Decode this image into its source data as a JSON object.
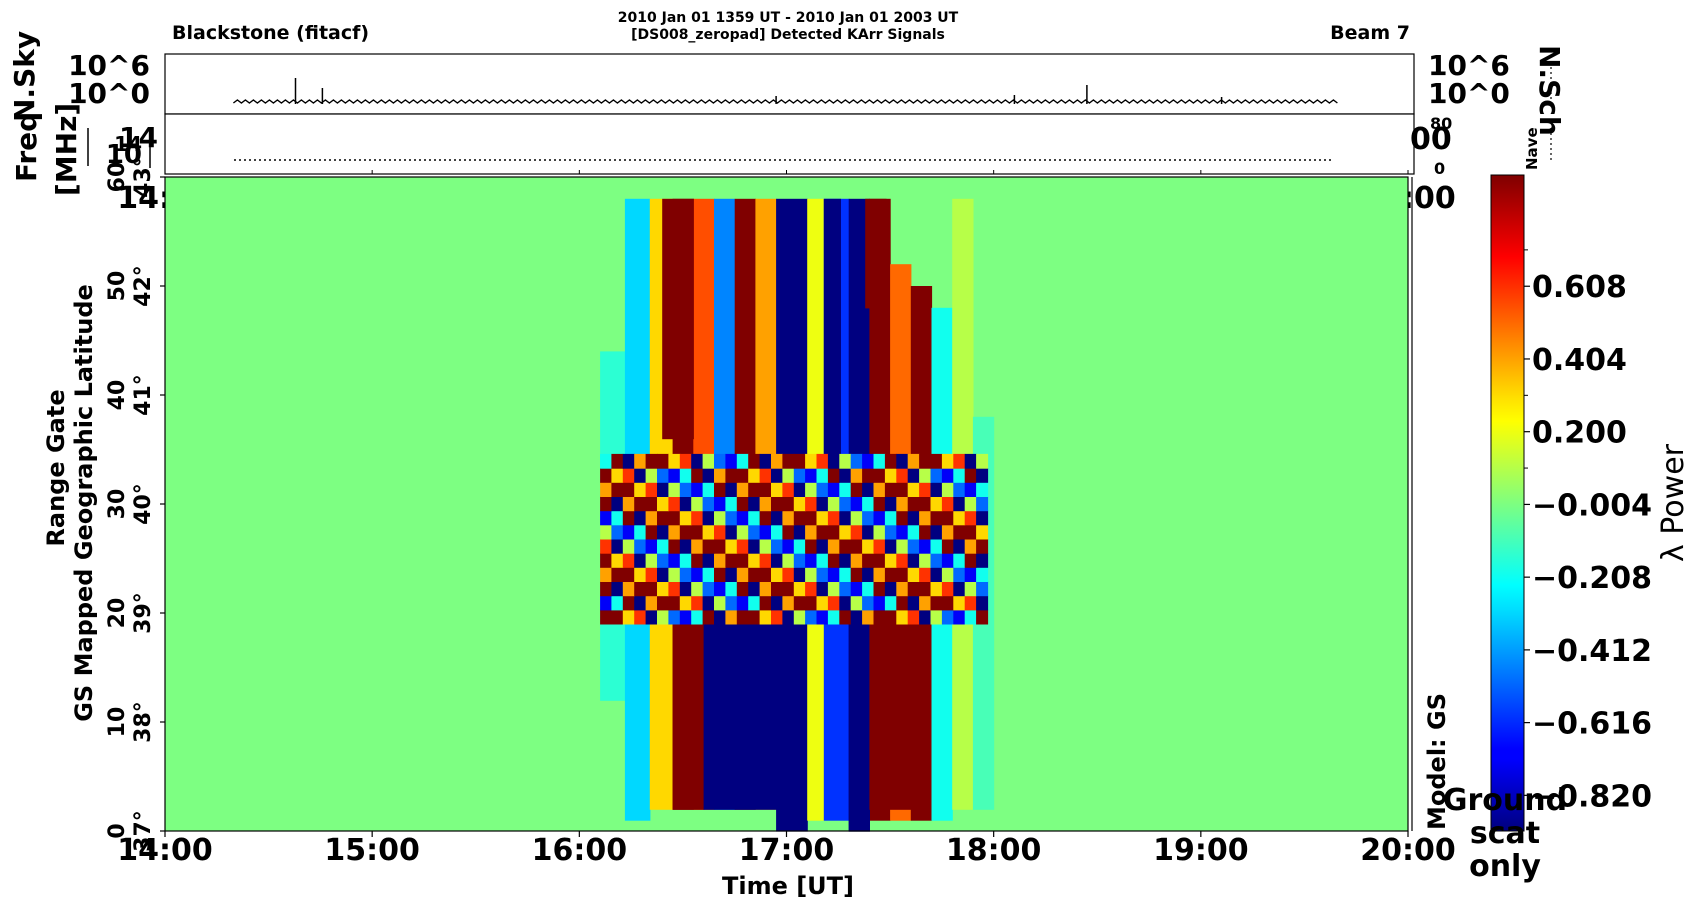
{
  "header": {
    "left": "Blackstone  (fitacf)",
    "center_line1": "2010 Jan 01 1359 UT - 2010 Jan 01 2003 UT",
    "center_line2": "[DS008_zeropad] Detected KArr Signals",
    "right": "Beam 7"
  },
  "top_panel": {
    "left_ticks": [
      "10^6",
      "10^0"
    ],
    "right_ticks": [
      "10^6",
      "10^0"
    ],
    "left_label": "N.Sky",
    "right_label": "N.Sch"
  },
  "freq_panel": {
    "left_ticks": [
      "14",
      "10"
    ],
    "left_label_line1": "Freq",
    "left_label_line2": "[MHz]",
    "right_tick_partial": "00",
    "nave_ticks": [
      "80",
      "0"
    ],
    "nave_label": "Nave"
  },
  "main": {
    "ylabel_line1": "Range Gate",
    "ylabel_line2": "GS Mapped Geographic Latitude",
    "xlabel": "Time [UT]",
    "model_label": "Model: GS",
    "ground_scat": [
      "Ground",
      "scat",
      "only"
    ]
  },
  "colorbar": {
    "ticks": [
      "0.608",
      "0.404",
      "0.200",
      "−0.004",
      "−0.208",
      "−0.412",
      "−0.616",
      "−0.820"
    ],
    "label": "λ Power"
  },
  "chart_data": {
    "type": "heatmap",
    "x_ticks": [
      "14:00",
      "15:00",
      "16:00",
      "17:00",
      "18:00",
      "19:00",
      "20:00"
    ],
    "y_range_gate_ticks": [
      "0",
      "10",
      "20",
      "30",
      "40",
      "50",
      "60"
    ],
    "y_latitude_ticks": [
      "37°",
      "38°",
      "39°",
      "40°",
      "41°",
      "42°",
      "43°"
    ],
    "xlim_hours": [
      14.0,
      20.0
    ],
    "ylim_gates": [
      0,
      60
    ],
    "zlim": [
      -0.92,
      0.92
    ],
    "colormap": "jet",
    "background_value": -0.004,
    "columns": [
      {
        "t0": 16.1,
        "t1": 16.22,
        "g0": 12,
        "g1": 44,
        "v": -0.15
      },
      {
        "t0": 16.22,
        "t1": 16.34,
        "g0": 1,
        "g1": 58,
        "v": -0.3
      },
      {
        "t0": 16.34,
        "t1": 16.45,
        "g0": 2,
        "g1": 58,
        "v": 0.3
      },
      {
        "t0": 16.45,
        "t1": 16.55,
        "g0": 2,
        "g1": 58,
        "v": 0.92
      },
      {
        "t0": 16.55,
        "t1": 16.65,
        "g0": 2,
        "g1": 58,
        "v": 0.55
      },
      {
        "t0": 16.65,
        "t1": 16.75,
        "g0": 2,
        "g1": 58,
        "v": -0.45
      },
      {
        "t0": 16.75,
        "t1": 16.85,
        "g0": 2,
        "g1": 58,
        "v": 0.92
      },
      {
        "t0": 16.85,
        "t1": 16.95,
        "g0": 2,
        "g1": 58,
        "v": 0.4
      },
      {
        "t0": 16.95,
        "t1": 17.1,
        "g0": 0,
        "g1": 58,
        "v": -0.92
      },
      {
        "t0": 17.1,
        "t1": 17.18,
        "g0": 1,
        "g1": 58,
        "v": 0.2
      },
      {
        "t0": 17.18,
        "t1": 17.3,
        "g0": 1,
        "g1": 58,
        "v": -0.6
      },
      {
        "t0": 17.3,
        "t1": 17.4,
        "g0": 0,
        "g1": 58,
        "v": -0.92
      },
      {
        "t0": 17.4,
        "t1": 17.5,
        "g0": 1,
        "g1": 58,
        "v": 0.92
      },
      {
        "t0": 17.5,
        "t1": 17.6,
        "g0": 1,
        "g1": 52,
        "v": 0.5
      },
      {
        "t0": 17.6,
        "t1": 17.7,
        "g0": 1,
        "g1": 50,
        "v": 0.92
      },
      {
        "t0": 17.7,
        "t1": 17.8,
        "g0": 1,
        "g1": 48,
        "v": -0.2
      },
      {
        "t0": 17.8,
        "t1": 17.9,
        "g0": 2,
        "g1": 58,
        "v": 0.1
      },
      {
        "t0": 17.9,
        "t1": 18.0,
        "g0": 2,
        "g1": 38,
        "v": -0.1
      }
    ],
    "patches": [
      {
        "t0": 16.45,
        "t1": 16.6,
        "g0": 2,
        "g1": 20,
        "v": 0.92
      },
      {
        "t0": 16.6,
        "t1": 16.95,
        "g0": 2,
        "g1": 20,
        "v": -0.92
      },
      {
        "t0": 17.3,
        "t1": 17.4,
        "g0": 0,
        "g1": 20,
        "v": -0.92
      },
      {
        "t0": 17.4,
        "t1": 17.62,
        "g0": 2,
        "g1": 20,
        "v": 0.92
      },
      {
        "t0": 17.18,
        "t1": 17.26,
        "g0": 28,
        "g1": 58,
        "v": -0.92
      },
      {
        "t0": 17.38,
        "t1": 17.48,
        "g0": 48,
        "g1": 58,
        "v": 0.92
      },
      {
        "t0": 16.4,
        "t1": 16.55,
        "g0": 36,
        "g1": 58,
        "v": 0.92
      }
    ],
    "checker_region": {
      "t0": 16.1,
      "t1": 17.95,
      "g0": 19,
      "g1": 34
    },
    "checker_values": [
      0.92,
      -0.92,
      0.4,
      -0.5,
      0.92,
      -0.2,
      0.6,
      -0.92,
      0.1,
      0.92,
      -0.7,
      0.3
    ]
  }
}
